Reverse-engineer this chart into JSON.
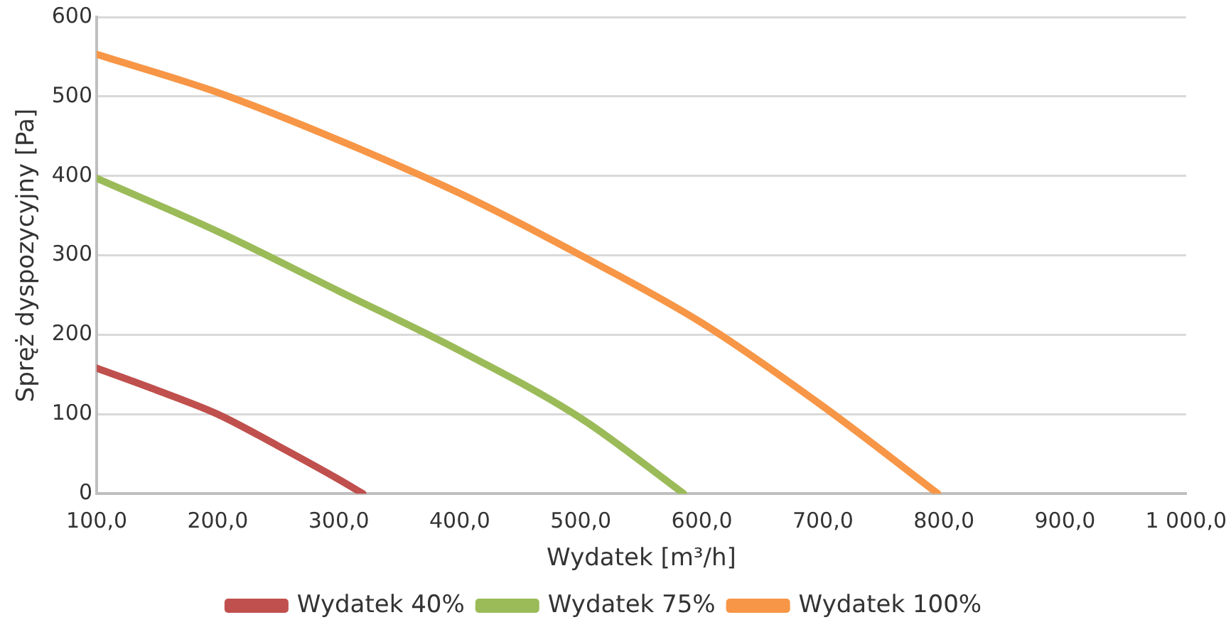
{
  "chart_data": {
    "type": "line",
    "xlabel": "Wydatek [m³/h]",
    "ylabel": "Spręż dyspozycyjny [Pa]",
    "xlim": [
      100,
      1000
    ],
    "xticks": [
      {
        "value": 100,
        "label": "100,0"
      },
      {
        "value": 200,
        "label": "200,0"
      },
      {
        "value": 300,
        "label": "300,0"
      },
      {
        "value": 400,
        "label": "400,0"
      },
      {
        "value": 500,
        "label": "500,0"
      },
      {
        "value": 600,
        "label": "600,0"
      },
      {
        "value": 700,
        "label": "700,0"
      },
      {
        "value": 800,
        "label": "800,0"
      },
      {
        "value": 900,
        "label": "900,0"
      },
      {
        "value": 1000,
        "label": "1 000,0"
      }
    ],
    "ylim": [
      0,
      600
    ],
    "yticks": [
      0,
      100,
      200,
      300,
      400,
      500,
      600
    ],
    "grid": "y",
    "legend": "bottom",
    "marker": "none",
    "line_style": "solid",
    "series": [
      {
        "name": "Wydatek 40%",
        "color": "#c0504d",
        "x": [
          100,
          150,
          200,
          250,
          300,
          320
        ],
        "values": [
          158,
          130,
          100,
          60,
          18,
          0
        ]
      },
      {
        "name": "Wydatek 75%",
        "color": "#9bbb59",
        "x": [
          100,
          200,
          300,
          400,
          500,
          585
        ],
        "values": [
          397,
          330,
          255,
          180,
          95,
          0
        ]
      },
      {
        "name": "Wydatek 100%",
        "color": "#f79646",
        "x": [
          100,
          200,
          300,
          400,
          500,
          600,
          700,
          795
        ],
        "values": [
          553,
          505,
          445,
          378,
          300,
          215,
          110,
          0
        ]
      }
    ]
  }
}
